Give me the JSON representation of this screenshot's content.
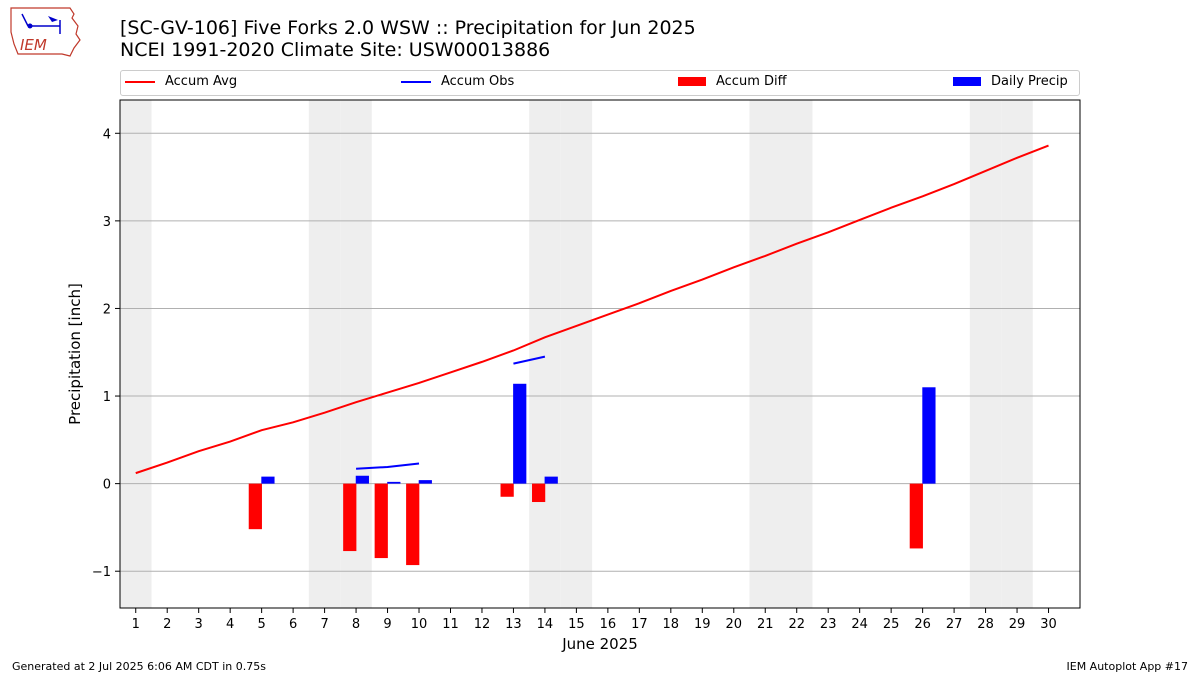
{
  "header": {
    "title_line1": "[SC-GV-106] Five Forks 2.0 WSW :: Precipitation for Jun 2025",
    "title_line2": "NCEI 1991-2020 Climate Site: USW00013886",
    "logo_text": "IEM"
  },
  "legend": {
    "accum_avg": "Accum Avg",
    "accum_obs": "Accum Obs",
    "accum_diff": "Accum Diff",
    "daily_precip": "Daily Precip"
  },
  "colors": {
    "avg": "#ff0000",
    "obs": "#0000ff",
    "diff": "#ff0000",
    "daily": "#0000ff",
    "weekend_shade": "#eeeeee"
  },
  "footer": {
    "left": "Generated at 2 Jul 2025 6:06 AM CDT in 0.75s",
    "right": "IEM Autoplot App #17"
  },
  "chart_data": {
    "type": "bar",
    "xlabel": "June 2025",
    "ylabel": "Precipitation [inch]",
    "xlim": [
      0.5,
      31
    ],
    "ylim": [
      -1.42,
      4.38
    ],
    "yticks": [
      -1,
      0,
      1,
      2,
      3,
      4
    ],
    "ytick_labels": [
      "−1",
      "0",
      "1",
      "2",
      "3",
      "4"
    ],
    "days": [
      1,
      2,
      3,
      4,
      5,
      6,
      7,
      8,
      9,
      10,
      11,
      12,
      13,
      14,
      15,
      16,
      17,
      18,
      19,
      20,
      21,
      22,
      23,
      24,
      25,
      26,
      27,
      28,
      29,
      30
    ],
    "shaded_days": [
      1,
      7,
      8,
      14,
      15,
      21,
      22,
      28,
      29
    ],
    "grid": "horizontal",
    "accum_avg": [
      0.12,
      0.24,
      0.37,
      0.48,
      0.61,
      0.7,
      0.81,
      0.93,
      1.04,
      1.15,
      1.27,
      1.39,
      1.52,
      1.67,
      1.8,
      1.93,
      2.06,
      2.2,
      2.33,
      2.47,
      2.6,
      2.74,
      2.87,
      3.01,
      3.15,
      3.28,
      3.42,
      3.57,
      3.72,
      3.86
    ],
    "accum_obs_segments": [
      {
        "days": [
          8,
          9,
          10
        ],
        "values": [
          0.17,
          0.19,
          0.23
        ]
      },
      {
        "days": [
          13,
          14
        ],
        "values": [
          1.37,
          1.45
        ]
      }
    ],
    "accum_diff": [
      {
        "day": 5,
        "value": -0.52
      },
      {
        "day": 8,
        "value": -0.77
      },
      {
        "day": 9,
        "value": -0.85
      },
      {
        "day": 10,
        "value": -0.93
      },
      {
        "day": 13,
        "value": -0.15
      },
      {
        "day": 14,
        "value": -0.21
      },
      {
        "day": 26,
        "value": -0.74
      }
    ],
    "daily_precip": [
      {
        "day": 5,
        "value": 0.08
      },
      {
        "day": 8,
        "value": 0.09
      },
      {
        "day": 9,
        "value": 0.02
      },
      {
        "day": 10,
        "value": 0.04
      },
      {
        "day": 13,
        "value": 1.14
      },
      {
        "day": 14,
        "value": 0.08
      },
      {
        "day": 26,
        "value": 1.1
      }
    ]
  }
}
